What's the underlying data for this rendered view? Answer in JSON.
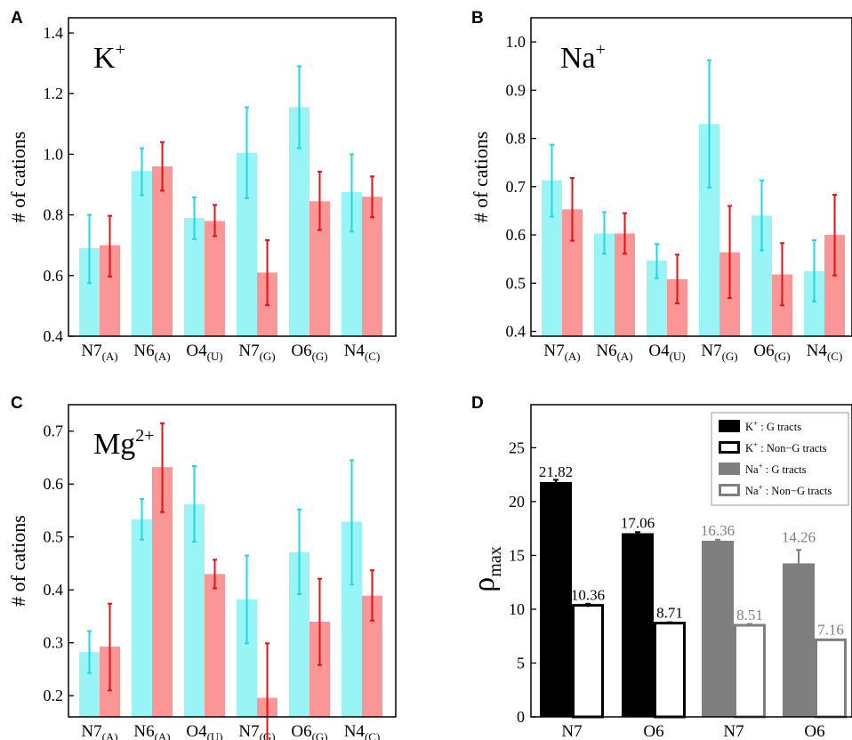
{
  "colors": {
    "cyan": "#99f5f5",
    "cyan_err": "#1ed8e8",
    "salmon": "#fa9696",
    "salmon_err": "#e81010",
    "black": "#000000",
    "gray": "#7f7f7f",
    "white": "#ffffff"
  },
  "chart_data": [
    {
      "type": "bar",
      "panel_letter": "A",
      "title_base": "K",
      "title_sup": "+",
      "ylabel": "# of cations",
      "categories": [
        {
          "main": "N7",
          "sub": "(A)"
        },
        {
          "main": "N6",
          "sub": "(A)"
        },
        {
          "main": "O4",
          "sub": "(U)"
        },
        {
          "main": "N7",
          "sub": "(G)"
        },
        {
          "main": "O6",
          "sub": "(G)"
        },
        {
          "main": "N4",
          "sub": "(C)"
        }
      ],
      "ylim": [
        0.4,
        1.45
      ],
      "yticks": [
        "0.4",
        "0.6",
        "0.8",
        "1.0",
        "1.2",
        "1.4"
      ],
      "series": [
        {
          "color": "cyan",
          "err_color": "cyan_err",
          "values": [
            0.69,
            0.945,
            0.79,
            1.005,
            1.155,
            0.875
          ],
          "err_low": [
            0.575,
            0.865,
            0.72,
            0.855,
            1.02,
            0.745
          ],
          "err_high": [
            0.8,
            1.02,
            0.858,
            1.155,
            1.29,
            1.0
          ]
        },
        {
          "color": "salmon",
          "err_color": "salmon_err",
          "values": [
            0.7,
            0.96,
            0.78,
            0.61,
            0.845,
            0.86
          ],
          "err_low": [
            0.597,
            0.88,
            0.73,
            0.502,
            0.75,
            0.792
          ],
          "err_high": [
            0.797,
            1.04,
            0.833,
            0.717,
            0.943,
            0.927
          ]
        }
      ]
    },
    {
      "type": "bar",
      "panel_letter": "B",
      "title_base": "Na",
      "title_sup": "+",
      "ylabel": "# of cations",
      "categories": [
        {
          "main": "N7",
          "sub": "(A)"
        },
        {
          "main": "N6",
          "sub": "(A)"
        },
        {
          "main": "O4",
          "sub": "(U)"
        },
        {
          "main": "N7",
          "sub": "(G)"
        },
        {
          "main": "O6",
          "sub": "(G)"
        },
        {
          "main": "N4",
          "sub": "(C)"
        }
      ],
      "ylim": [
        0.39,
        1.05
      ],
      "yticks": [
        "0.4",
        "0.5",
        "0.6",
        "0.7",
        "0.8",
        "0.9",
        "1.0"
      ],
      "series": [
        {
          "color": "cyan",
          "err_color": "cyan_err",
          "values": [
            0.713,
            0.603,
            0.547,
            0.83,
            0.64,
            0.525
          ],
          "err_low": [
            0.638,
            0.561,
            0.51,
            0.698,
            0.568,
            0.462
          ],
          "err_high": [
            0.787,
            0.647,
            0.581,
            0.962,
            0.713,
            0.589
          ]
        },
        {
          "color": "salmon",
          "err_color": "salmon_err",
          "values": [
            0.653,
            0.603,
            0.508,
            0.564,
            0.518,
            0.6
          ],
          "err_low": [
            0.588,
            0.561,
            0.458,
            0.469,
            0.454,
            0.516
          ],
          "err_high": [
            0.718,
            0.645,
            0.559,
            0.66,
            0.583,
            0.683
          ]
        }
      ]
    },
    {
      "type": "bar",
      "panel_letter": "C",
      "title_base": "Mg",
      "title_sup": "2+",
      "ylabel": "# of cations",
      "categories": [
        {
          "main": "N7",
          "sub": "(A)"
        },
        {
          "main": "N6",
          "sub": "(A)"
        },
        {
          "main": "O4",
          "sub": "(U)"
        },
        {
          "main": "N7",
          "sub": "(G)"
        },
        {
          "main": "O6",
          "sub": "(G)"
        },
        {
          "main": "N4",
          "sub": "(C)"
        }
      ],
      "ylim": [
        0.16,
        0.75
      ],
      "yticks": [
        "0.2",
        "0.3",
        "0.4",
        "0.5",
        "0.6",
        "0.7"
      ],
      "series": [
        {
          "color": "cyan",
          "err_color": "cyan_err",
          "values": [
            0.283,
            0.533,
            0.562,
            0.382,
            0.471,
            0.529
          ],
          "err_low": [
            0.243,
            0.495,
            0.491,
            0.299,
            0.392,
            0.41
          ],
          "err_high": [
            0.322,
            0.572,
            0.634,
            0.465,
            0.552,
            0.645
          ]
        },
        {
          "color": "salmon",
          "err_color": "salmon_err",
          "values": [
            0.293,
            0.632,
            0.43,
            0.196,
            0.34,
            0.389
          ],
          "err_low": [
            0.21,
            0.547,
            0.403,
            0.093,
            0.258,
            0.342
          ],
          "err_high": [
            0.374,
            0.715,
            0.457,
            0.299,
            0.421,
            0.437
          ]
        }
      ]
    },
    {
      "type": "bar",
      "panel_letter": "D",
      "ylabel_base": "ρ",
      "ylabel_sub": "max",
      "categories": [
        "N7",
        "O6",
        "N7",
        "O6"
      ],
      "ylim": [
        0,
        29
      ],
      "yticks": [
        "0",
        "5",
        "10",
        "15",
        "20",
        "25"
      ],
      "series": [
        {
          "ion": "K",
          "ion_sup": "+",
          "suffix": ": G tracts",
          "style": "filled",
          "color": "black"
        },
        {
          "ion": "K",
          "ion_sup": "+",
          "suffix": ": Non−G tracts",
          "style": "open",
          "color": "black"
        },
        {
          "ion": "Na",
          "ion_sup": "+",
          "suffix": ": G tracts",
          "style": "filled",
          "color": "gray"
        },
        {
          "ion": "Na",
          "ion_sup": "+",
          "suffix": ": Non−G tracts",
          "style": "open",
          "color": "gray"
        }
      ],
      "bars": [
        {
          "series": 0,
          "group": 0,
          "value": 21.82,
          "label": "21.82",
          "err": 0.2
        },
        {
          "series": 1,
          "group": 0,
          "value": 10.36,
          "label": "10.36",
          "err": 0.15
        },
        {
          "series": 0,
          "group": 1,
          "value": 17.06,
          "label": "17.06",
          "err": 0.1
        },
        {
          "series": 1,
          "group": 1,
          "value": 8.71,
          "label": "8.71",
          "err": 0.08
        },
        {
          "series": 2,
          "group": 2,
          "value": 16.36,
          "label": "16.36",
          "err": 0.1
        },
        {
          "series": 3,
          "group": 2,
          "value": 8.51,
          "label": "8.51",
          "err": 0.12
        },
        {
          "series": 2,
          "group": 3,
          "value": 14.26,
          "label": "14.26",
          "err": 1.25
        },
        {
          "series": 3,
          "group": 3,
          "value": 7.16,
          "label": "7.16",
          "err": 0.0
        }
      ],
      "legend_position": "top-right"
    }
  ]
}
